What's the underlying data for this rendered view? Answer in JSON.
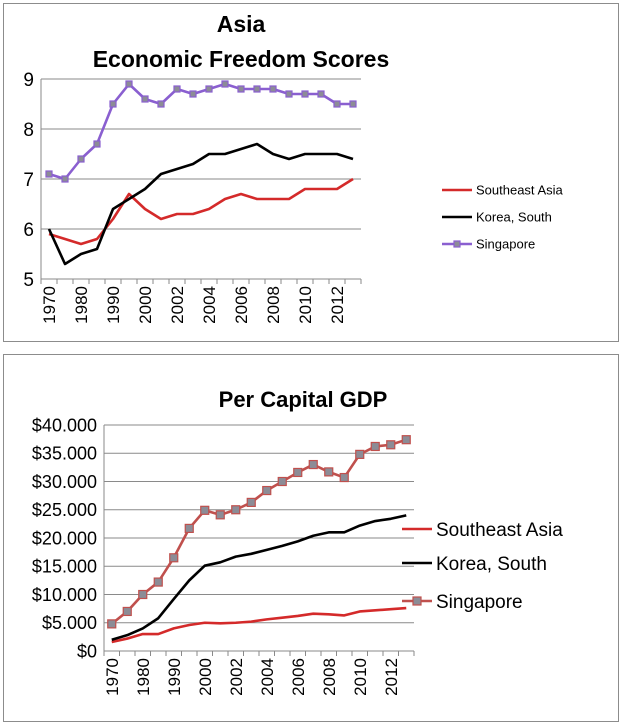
{
  "chart_data": [
    {
      "type": "line",
      "title": "Asia",
      "subtitle": "Economic Freedom Scores",
      "x_tick_labels": [
        "1970",
        "1980",
        "1990",
        "2000",
        "2002",
        "2004",
        "2006",
        "2008",
        "2010",
        "2012"
      ],
      "x": [
        1970,
        1975,
        1980,
        1985,
        1990,
        1995,
        2000,
        2001,
        2002,
        2003,
        2004,
        2005,
        2006,
        2007,
        2008,
        2009,
        2010,
        2011,
        2012,
        2013
      ],
      "ylim": [
        5,
        9
      ],
      "y_ticks": [
        5,
        6,
        7,
        8,
        9
      ],
      "y_tick_labels": [
        "5",
        "6",
        "7",
        "8",
        "9"
      ],
      "grid": true,
      "legend_position": "right",
      "series": [
        {
          "name": "Southeast Asia",
          "color": "#d42a2a",
          "marker": "none",
          "values": [
            5.9,
            5.8,
            5.7,
            5.8,
            6.2,
            6.7,
            6.4,
            6.2,
            6.3,
            6.3,
            6.4,
            6.6,
            6.7,
            6.6,
            6.6,
            6.6,
            6.8,
            6.8,
            6.8,
            7.0
          ]
        },
        {
          "name": "Korea, South",
          "color": "#000000",
          "marker": "none",
          "values": [
            6.0,
            5.3,
            5.5,
            5.6,
            6.4,
            6.6,
            6.8,
            7.1,
            7.2,
            7.3,
            7.5,
            7.5,
            7.6,
            7.7,
            7.5,
            7.4,
            7.5,
            7.5,
            7.5,
            7.4
          ]
        },
        {
          "name": "Singapore",
          "color": "#8a5fd0",
          "marker": "square",
          "marker_color": "#8c8c96",
          "values": [
            7.1,
            7.0,
            7.4,
            7.7,
            8.5,
            8.9,
            8.6,
            8.5,
            8.8,
            8.7,
            8.8,
            8.9,
            8.8,
            8.8,
            8.8,
            8.7,
            8.7,
            8.7,
            8.5,
            8.5
          ]
        }
      ]
    },
    {
      "type": "line",
      "title": "Per Capital GDP",
      "x_tick_labels": [
        "1970",
        "1980",
        "1990",
        "2000",
        "2002",
        "2004",
        "2006",
        "2008",
        "2010",
        "2012"
      ],
      "x": [
        1970,
        1975,
        1980,
        1985,
        1990,
        1995,
        2000,
        2001,
        2002,
        2003,
        2004,
        2005,
        2006,
        2007,
        2008,
        2009,
        2010,
        2011,
        2012,
        2013
      ],
      "ylim": [
        0,
        40000
      ],
      "y_ticks": [
        0,
        5000,
        10000,
        15000,
        20000,
        25000,
        30000,
        35000,
        40000
      ],
      "y_tick_labels": [
        "$0",
        "$5.000",
        "$10.000",
        "$15.000",
        "$20.000",
        "$25.000",
        "$30.000",
        "$35.000",
        "$40.000"
      ],
      "grid": true,
      "legend_position": "right",
      "series": [
        {
          "name": "Southeast Asia",
          "color": "#d42a2a",
          "marker": "none",
          "values": [
            1600,
            2200,
            3000,
            3000,
            4000,
            4600,
            5000,
            4900,
            5000,
            5200,
            5600,
            5900,
            6200,
            6600,
            6500,
            6300,
            7000,
            7200,
            7400,
            7600
          ]
        },
        {
          "name": "Korea, South",
          "color": "#000000",
          "marker": "none",
          "values": [
            2000,
            2800,
            4000,
            5800,
            9200,
            12500,
            15100,
            15700,
            16700,
            17200,
            17900,
            18600,
            19400,
            20400,
            21000,
            21000,
            22200,
            23000,
            23400,
            24000
          ]
        },
        {
          "name": "Singapore",
          "color": "#c0504d",
          "marker": "square",
          "marker_color": "#8c8c96",
          "values": [
            4800,
            7000,
            10000,
            12200,
            16500,
            21700,
            24900,
            24100,
            25000,
            26300,
            28400,
            30000,
            31600,
            33000,
            31700,
            30700,
            34800,
            36200,
            36500,
            37400
          ]
        }
      ]
    }
  ]
}
